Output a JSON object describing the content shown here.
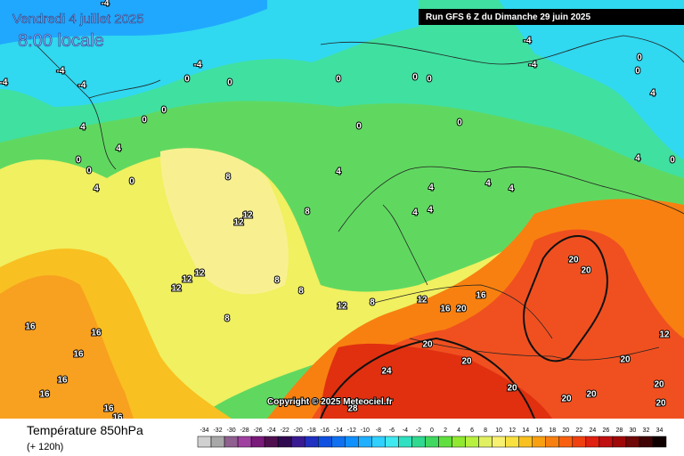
{
  "header": {
    "date": "Vendredi 4 juillet 2025",
    "time": "8:00 locale",
    "run": "Run GFS 6 Z du Dimanche 29 juin 2025"
  },
  "copyright": "Copyright © 2025 Meteociel.fr",
  "footer": {
    "title": "Température 850hPa",
    "lead": "(+ 120h)"
  },
  "contour_labels": [
    "-4",
    "-4",
    "-4",
    "-4",
    "-4",
    "-4",
    "-4",
    "0",
    "0",
    "0",
    "0",
    "0",
    "0",
    "0",
    "0",
    "0",
    "0",
    "0",
    "0",
    "0",
    "0",
    "0",
    "4",
    "4",
    "4",
    "4",
    "4",
    "4",
    "4",
    "4",
    "4",
    "4",
    "4",
    "8",
    "8",
    "8",
    "8",
    "8",
    "8",
    "12",
    "12",
    "12",
    "12",
    "12",
    "12",
    "12",
    "16",
    "16",
    "16",
    "16",
    "16",
    "16",
    "16",
    "16",
    "16",
    "20",
    "20",
    "20",
    "20",
    "20",
    "20",
    "20",
    "20",
    "20",
    "20",
    "20",
    "12",
    "24",
    "28"
  ],
  "scale": {
    "values": [
      -34,
      -32,
      -30,
      -28,
      -26,
      -24,
      -22,
      -20,
      -18,
      -16,
      -14,
      -12,
      -10,
      -8,
      -6,
      -4,
      -2,
      0,
      2,
      4,
      6,
      8,
      10,
      12,
      14,
      16,
      18,
      20,
      22,
      24,
      26,
      28,
      30,
      32,
      34
    ],
    "colors": [
      "#d0d0d0",
      "#a8a8a8",
      "#906090",
      "#a040a0",
      "#7a1a7a",
      "#501050",
      "#300a50",
      "#3a1a90",
      "#2030c0",
      "#1050e0",
      "#1070f0",
      "#1090ff",
      "#20b0ff",
      "#30d0ff",
      "#40e8f0",
      "#30e0c0",
      "#30d890",
      "#40d860",
      "#60e040",
      "#90e830",
      "#b8f040",
      "#e0f060",
      "#f8f070",
      "#f8e040",
      "#f8c020",
      "#f8a010",
      "#f88010",
      "#f86010",
      "#f04010",
      "#e02010",
      "#c01010",
      "#a00808",
      "#700808",
      "#400404",
      "#100000"
    ]
  }
}
